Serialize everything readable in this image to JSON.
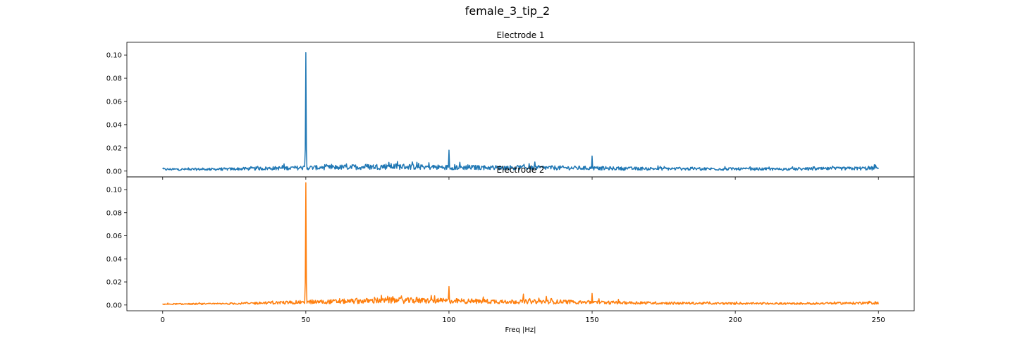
{
  "figure": {
    "title": "female_3_tip_2"
  },
  "chart_data": [
    {
      "type": "line",
      "title": "Electrode 1",
      "xlabel": "",
      "ylabel": "",
      "xlim": [
        -12.5,
        262.5
      ],
      "ylim": [
        -0.005,
        0.111
      ],
      "xticks": [
        0,
        50,
        100,
        150,
        200,
        250
      ],
      "yticks": [
        "0.00",
        "0.02",
        "0.04",
        "0.06",
        "0.08",
        "0.10"
      ],
      "grid": false,
      "color": "#1f77b4",
      "baseline": {
        "x": [
          0,
          20,
          40,
          60,
          80,
          100,
          120,
          140,
          160,
          180,
          200,
          220,
          250
        ],
        "y": [
          0.0015,
          0.0016,
          0.0025,
          0.0032,
          0.004,
          0.0032,
          0.003,
          0.0028,
          0.0022,
          0.002,
          0.0018,
          0.0017,
          0.0025
        ]
      },
      "peaks": [
        {
          "x": 50,
          "y": 0.102
        },
        {
          "x": 100,
          "y": 0.018
        },
        {
          "x": 150,
          "y": 0.013
        },
        {
          "x": 79,
          "y": 0.0075
        },
        {
          "x": 93,
          "y": 0.0072
        },
        {
          "x": 130,
          "y": 0.0078
        },
        {
          "x": 128,
          "y": 0.0065
        }
      ]
    },
    {
      "type": "line",
      "title": "Electrode 2",
      "xlabel": "Freq |Hz|",
      "ylabel": "",
      "xlim": [
        -12.5,
        262.5
      ],
      "ylim": [
        -0.005,
        0.111
      ],
      "xticks": [
        0,
        50,
        100,
        150,
        200,
        250
      ],
      "yticks": [
        "0.00",
        "0.02",
        "0.04",
        "0.06",
        "0.08",
        "0.10"
      ],
      "grid": false,
      "color": "#ff7f0e",
      "baseline": {
        "x": [
          0,
          20,
          40,
          60,
          80,
          100,
          120,
          140,
          160,
          180,
          200,
          220,
          250
        ],
        "y": [
          0.0008,
          0.001,
          0.002,
          0.003,
          0.004,
          0.0035,
          0.003,
          0.0028,
          0.002,
          0.0016,
          0.0013,
          0.0012,
          0.0018
        ]
      },
      "peaks": [
        {
          "x": 50,
          "y": 0.106
        },
        {
          "x": 100,
          "y": 0.016
        },
        {
          "x": 150,
          "y": 0.01
        },
        {
          "x": 126,
          "y": 0.0095
        },
        {
          "x": 95,
          "y": 0.008
        },
        {
          "x": 112,
          "y": 0.007
        },
        {
          "x": 134,
          "y": 0.0075
        }
      ]
    }
  ]
}
